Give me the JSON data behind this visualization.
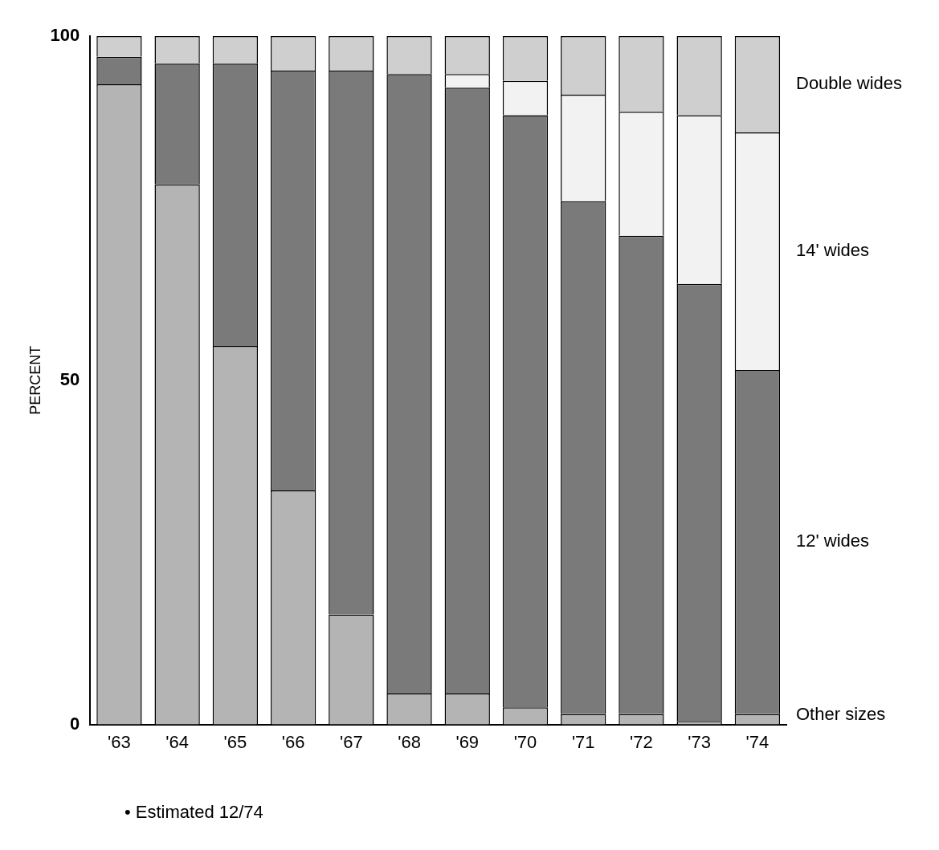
{
  "chart_data": {
    "type": "bar",
    "stacked": true,
    "ylabel": "PERCENT",
    "categories": [
      "'63",
      "'64",
      "'65",
      "'66",
      "'67",
      "'68",
      "'69",
      "'70",
      "'71",
      "'72",
      "'73",
      "'74"
    ],
    "series": [
      {
        "name": "Other sizes",
        "color": "#b4b4b4",
        "values": [
          93,
          78.5,
          55,
          34,
          16,
          4.5,
          4.5,
          2.5,
          1.5,
          1.5,
          0.5,
          1.5
        ]
      },
      {
        "name": "12' wides",
        "color": "#7a7a7a",
        "values": [
          4,
          17.5,
          41,
          61,
          79,
          90,
          88,
          86,
          74.5,
          69.5,
          63.5,
          50
        ]
      },
      {
        "name": "14' wides",
        "color": "#f2f2f2",
        "values": [
          0,
          0,
          0,
          0,
          0,
          0,
          2,
          5,
          15.5,
          18,
          24.5,
          34.5
        ]
      },
      {
        "name": "Double wides",
        "color": "#cfcfcf",
        "values": [
          3,
          4,
          4,
          5,
          5,
          5.5,
          5.5,
          6.5,
          8.5,
          11,
          11.5,
          14
        ]
      }
    ],
    "ylim": [
      0,
      100
    ],
    "yticks": [
      0,
      50,
      100
    ],
    "grid": false,
    "annotations": [
      "• Estimated 12/74"
    ]
  }
}
